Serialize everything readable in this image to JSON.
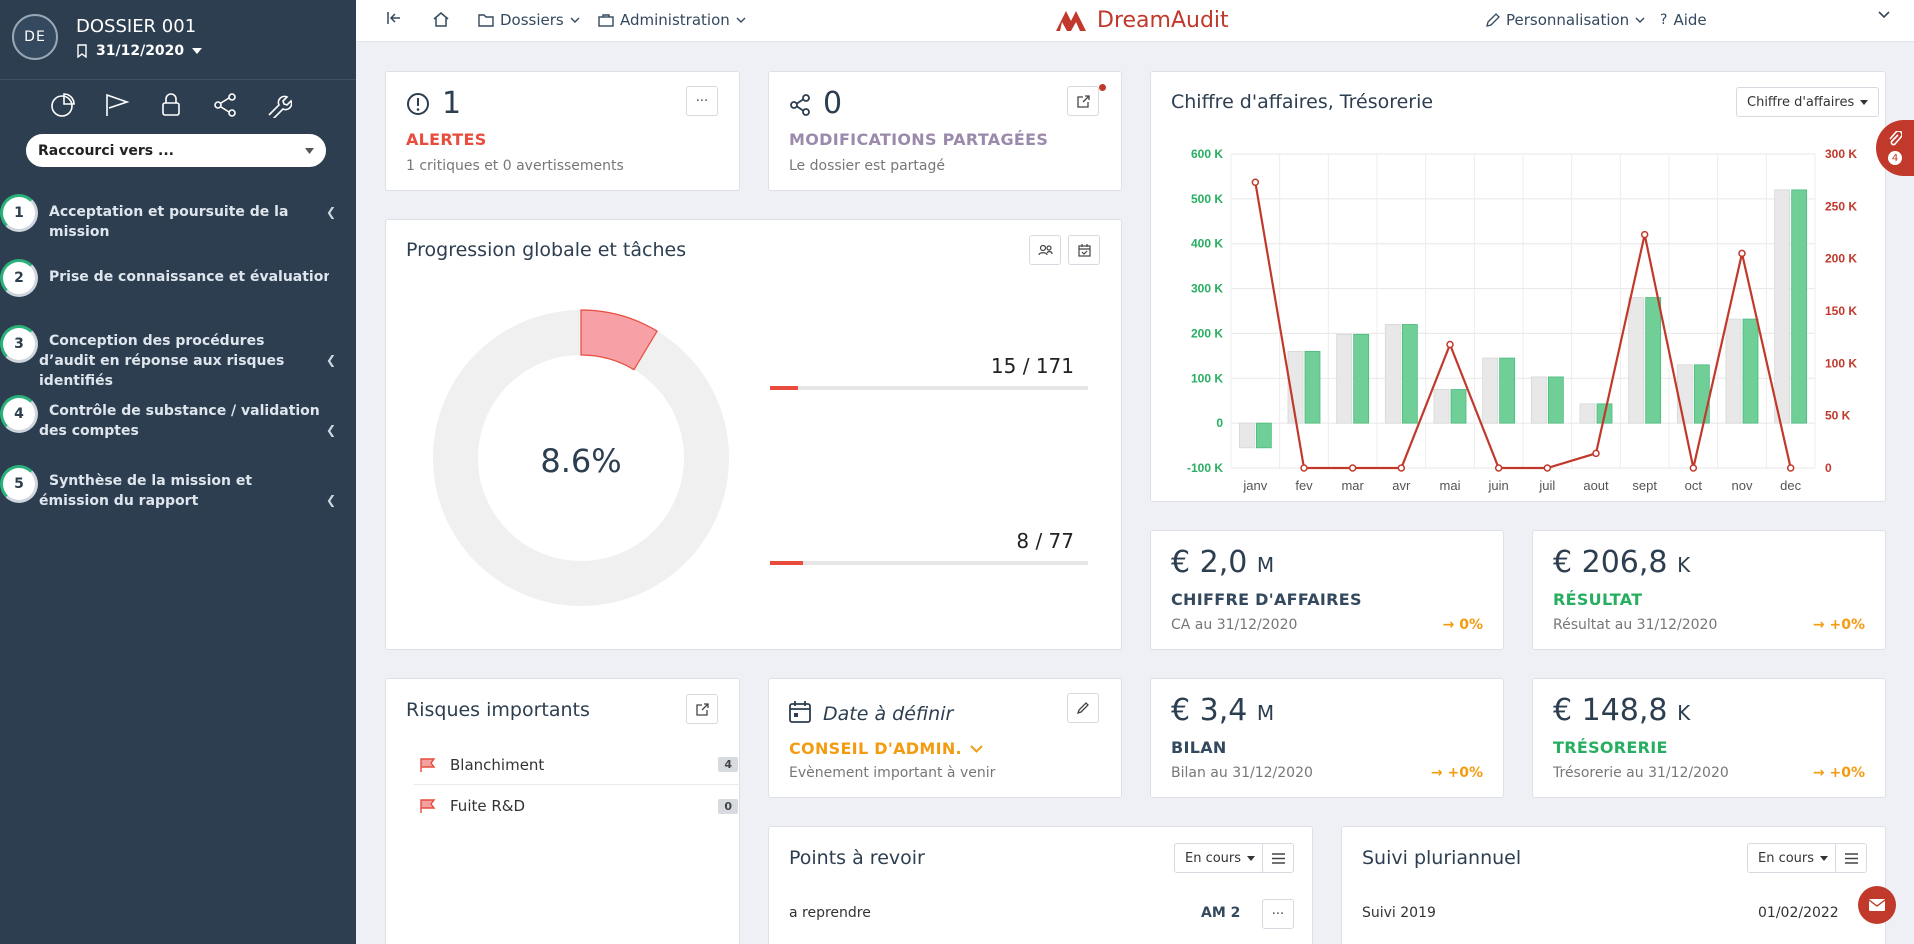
{
  "sidebar": {
    "avatar": "DE",
    "dossier_title": "DOSSIER 001",
    "dossier_date": "31/12/2020",
    "shortcut_label": "Raccourci vers ...",
    "tools": [
      "pie-chart-icon",
      "flag-icon",
      "lock-icon",
      "share-icon",
      "wrench-icon"
    ],
    "phases": [
      {
        "num": "1",
        "label": "Acceptation et poursuite de la mission"
      },
      {
        "num": "2",
        "label": "Prise de connaissance et évaluation du RAS"
      },
      {
        "num": "3",
        "label": "Conception des procédures d’audit en réponse aux risques identifiés"
      },
      {
        "num": "4",
        "label": "Contrôle de substance / validation des comptes"
      },
      {
        "num": "5",
        "label": "Synthèse de la mission et émission du rapport"
      }
    ]
  },
  "topbar": {
    "dossiers": "Dossiers",
    "administration": "Administration",
    "logo_text": "DreamAudit",
    "personnalisation": "Personnalisation",
    "aide": "Aide"
  },
  "alerts": {
    "count": "1",
    "label": "ALERTES",
    "sub": "1 critiques et 0 avertissements",
    "more": "···"
  },
  "modifs": {
    "count": "0",
    "label": "MODIFICATIONS PARTAGÉES",
    "sub": "Le dossier est partagé"
  },
  "chart_card": {
    "title": "Chiffre d'affaires, Trésorerie",
    "dropdown": "Chiffre d'affaires"
  },
  "chart_data": {
    "type": "bar",
    "categories": [
      "janv",
      "fev",
      "mar",
      "avr",
      "mai",
      "juin",
      "juil",
      "aout",
      "sept",
      "oct",
      "nov",
      "dec"
    ],
    "left_axis": {
      "ticks": [
        "600 K",
        "500 K",
        "400 K",
        "300 K",
        "200 K",
        "100 K",
        "0",
        "-100 K"
      ],
      "ylim": [
        -100,
        600
      ],
      "color": "#27ae60"
    },
    "right_axis": {
      "ticks": [
        "300 K",
        "250 K",
        "200 K",
        "150 K",
        "100 K",
        "50 K",
        "0"
      ],
      "ylim": [
        0,
        300
      ],
      "color": "#c0392b"
    },
    "series": [
      {
        "kind": "bar",
        "color": "#e8e8e8",
        "values": [
          -55,
          160,
          198,
          220,
          75,
          145,
          103,
          43,
          280,
          130,
          232,
          520
        ]
      },
      {
        "kind": "bar",
        "color": "#6fcf97",
        "values": [
          -55,
          160,
          198,
          220,
          75,
          145,
          103,
          43,
          280,
          130,
          232,
          520
        ]
      },
      {
        "kind": "line",
        "color": "#c0392b",
        "values": [
          273,
          0,
          0,
          0,
          118,
          0,
          0,
          14,
          223,
          0,
          205,
          0
        ]
      }
    ]
  },
  "progression": {
    "title": "Progression globale et tâches",
    "percent": "8.6%",
    "percent_value": 0.086,
    "bar1_label": "15 / 171",
    "bar1_fraction": 0.088,
    "bar2_label": "8 / 77",
    "bar2_fraction": 0.104
  },
  "kpi": {
    "ca": {
      "value": "€ 2,0",
      "unit": "M",
      "label": "CHIFFRE D'AFFAIRES",
      "sub": "CA au 31/12/2020",
      "delta": "0%"
    },
    "resultat": {
      "value": "€ 206,8",
      "unit": "K",
      "label": "RÉSULTAT",
      "sub": "Résultat au 31/12/2020",
      "delta": "+0%"
    },
    "bilan": {
      "value": "€ 3,4",
      "unit": "M",
      "label": "BILAN",
      "sub": "Bilan au 31/12/2020",
      "delta": "+0%"
    },
    "tresorerie": {
      "value": "€ 148,8",
      "unit": "K",
      "label": "TRÉSORERIE",
      "sub": "Trésorerie au 31/12/2020",
      "delta": "+0%"
    }
  },
  "risques": {
    "title": "Risques importants",
    "items": [
      {
        "label": "Blanchiment",
        "count": "4"
      },
      {
        "label": "Fuite R&D",
        "count": "0"
      }
    ]
  },
  "event": {
    "title": "Date à définir",
    "label": "CONSEIL D'ADMIN.",
    "sub": "Evènement important à venir"
  },
  "points": {
    "title": "Points à revoir",
    "filter": "En cours",
    "row_label": "a reprendre",
    "row_code": "AM 2",
    "more": "···"
  },
  "suivi": {
    "title": "Suivi pluriannuel",
    "filter": "En cours",
    "row_label": "Suivi 2019",
    "row_date": "01/02/2022"
  },
  "float": {
    "count": "4"
  }
}
